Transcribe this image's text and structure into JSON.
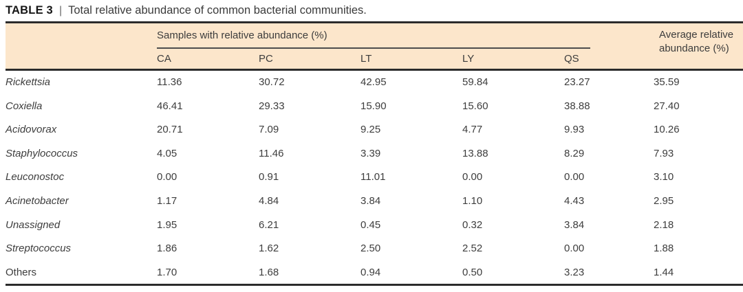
{
  "title": {
    "label": "TABLE 3",
    "separator": "|",
    "caption": "Total relative abundance of common bacterial communities."
  },
  "header": {
    "samples_group": "Samples with relative abundance (%)",
    "sample_columns": [
      "CA",
      "PC",
      "LT",
      "LY",
      "QS"
    ],
    "average_line1": "Average relative",
    "average_line2": "abundance (%)"
  },
  "rows": [
    {
      "taxon": "Rickettsia",
      "italic": true,
      "values": [
        "11.36",
        "30.72",
        "42.95",
        "59.84",
        "23.27"
      ],
      "avg": "35.59"
    },
    {
      "taxon": "Coxiella",
      "italic": true,
      "values": [
        "46.41",
        "29.33",
        "15.90",
        "15.60",
        "38.88"
      ],
      "avg": "27.40"
    },
    {
      "taxon": "Acidovorax",
      "italic": true,
      "values": [
        "20.71",
        "7.09",
        "9.25",
        "4.77",
        "9.93"
      ],
      "avg": "10.26"
    },
    {
      "taxon": "Staphylococcus",
      "italic": true,
      "values": [
        "4.05",
        "11.46",
        "3.39",
        "13.88",
        "8.29"
      ],
      "avg": "7.93"
    },
    {
      "taxon": "Leuconostoc",
      "italic": true,
      "values": [
        "0.00",
        "0.91",
        "11.01",
        "0.00",
        "0.00"
      ],
      "avg": "3.10"
    },
    {
      "taxon": "Acinetobacter",
      "italic": true,
      "values": [
        "1.17",
        "4.84",
        "3.84",
        "1.10",
        "4.43"
      ],
      "avg": "2.95"
    },
    {
      "taxon": "Unassigned",
      "italic": true,
      "values": [
        "1.95",
        "6.21",
        "0.45",
        "0.32",
        "3.84"
      ],
      "avg": "2.18"
    },
    {
      "taxon": "Streptococcus",
      "italic": true,
      "values": [
        "1.86",
        "1.62",
        "2.50",
        "2.52",
        "0.00"
      ],
      "avg": "1.88"
    },
    {
      "taxon": "Others",
      "italic": false,
      "values": [
        "1.70",
        "1.68",
        "0.94",
        "0.50",
        "3.23"
      ],
      "avg": "1.44"
    }
  ],
  "colors": {
    "header_background": "#fce6cb",
    "rule": "#2b2b2b",
    "text": "#3d3d3d",
    "title_text": "#161616"
  }
}
